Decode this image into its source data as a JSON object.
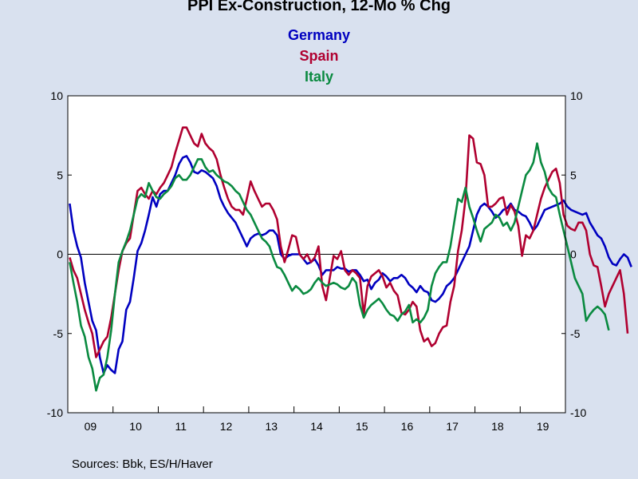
{
  "chart_data": {
    "type": "line",
    "title": "PPI Ex-Construction, 12-Mo % Chg",
    "source": "Sources:  Bbk, ES/H/Haver",
    "ylim": [
      -10,
      10
    ],
    "y_ticks": [
      "10",
      "5",
      "0",
      "-5",
      "-10"
    ],
    "x_labels": [
      "09",
      "10",
      "11",
      "12",
      "13",
      "14",
      "15",
      "16",
      "17",
      "18",
      "19"
    ],
    "x_start": "2009-01",
    "x_end": "2019-12",
    "grid": false,
    "legend_placement": "top-center",
    "series": [
      {
        "name": "Germany",
        "color": "#0000c0",
        "values": [
          3.2,
          1.5,
          0.5,
          -0.2,
          -1.8,
          -3.0,
          -4.2,
          -4.8,
          -6.5,
          -7.5,
          -7.0,
          -7.3,
          -7.5,
          -6.0,
          -5.5,
          -3.5,
          -3.0,
          -1.5,
          0.2,
          0.7,
          1.5,
          2.5,
          3.6,
          3.0,
          3.8,
          4.0,
          4.0,
          4.5,
          5.0,
          5.7,
          6.1,
          6.2,
          5.8,
          5.2,
          5.1,
          5.3,
          5.2,
          5.0,
          4.8,
          4.3,
          3.5,
          3.0,
          2.6,
          2.3,
          2.0,
          1.5,
          1.0,
          0.5,
          1.0,
          1.2,
          1.3,
          1.2,
          1.3,
          1.5,
          1.5,
          1.2,
          0.0,
          -0.3,
          -0.1,
          0.0,
          0.0,
          0.0,
          -0.3,
          -0.6,
          -0.5,
          -0.3,
          -0.7,
          -1.3,
          -1.0,
          -1.0,
          -1.0,
          -0.8,
          -0.9,
          -0.9,
          -1.1,
          -1.0,
          -1.0,
          -1.3,
          -1.7,
          -1.6,
          -2.2,
          -1.8,
          -1.6,
          -1.2,
          -1.4,
          -1.7,
          -1.5,
          -1.5,
          -1.3,
          -1.5,
          -1.9,
          -2.1,
          -2.4,
          -2.0,
          -2.3,
          -2.4,
          -2.9,
          -3.0,
          -2.8,
          -2.5,
          -2.0,
          -1.8,
          -1.5,
          -1.0,
          -0.5,
          0.0,
          0.5,
          1.5,
          2.5,
          3.0,
          3.2,
          3.0,
          2.7,
          2.3,
          2.5,
          2.8,
          2.9,
          3.2,
          2.8,
          2.7,
          2.5,
          2.4,
          2.0,
          1.5,
          1.8,
          2.3,
          2.8,
          2.9,
          3.0,
          3.1,
          3.2,
          3.4,
          3.0,
          2.8,
          2.7,
          2.6,
          2.5,
          2.6,
          2.0,
          1.6,
          1.2,
          1.0,
          0.5,
          -0.2,
          -0.6,
          -0.7,
          -0.3,
          0.0,
          -0.2,
          -0.8
        ]
      },
      {
        "name": "Spain",
        "color": "#b00030",
        "values": [
          -0.2,
          -1.0,
          -1.5,
          -2.5,
          -3.5,
          -4.3,
          -5.0,
          -6.5,
          -6.0,
          -5.5,
          -5.2,
          -4.0,
          -2.5,
          -1.0,
          0.2,
          0.7,
          1.0,
          2.5,
          4.0,
          4.2,
          3.8,
          3.5,
          4.0,
          3.8,
          4.2,
          4.5,
          5.0,
          5.5,
          6.4,
          7.2,
          8.0,
          8.0,
          7.5,
          7.0,
          6.8,
          7.6,
          7.0,
          6.7,
          6.5,
          6.0,
          5.0,
          4.2,
          3.5,
          3.0,
          2.8,
          2.8,
          2.5,
          3.5,
          4.6,
          4.0,
          3.5,
          3.0,
          3.2,
          3.2,
          2.8,
          2.2,
          0.5,
          -0.5,
          0.3,
          1.2,
          1.1,
          0.0,
          -0.3,
          0.0,
          -0.5,
          -0.2,
          0.5,
          -2.0,
          -2.9,
          -1.5,
          -0.1,
          -0.3,
          0.2,
          -1.0,
          -1.3,
          -1.0,
          -1.2,
          -1.5,
          -3.8,
          -2.0,
          -1.4,
          -1.2,
          -1.0,
          -1.4,
          -2.1,
          -1.8,
          -2.3,
          -2.6,
          -3.7,
          -3.8,
          -3.5,
          -3.0,
          -3.3,
          -4.8,
          -5.5,
          -5.3,
          -5.8,
          -5.6,
          -5.0,
          -4.6,
          -4.5,
          -3.0,
          -2.0,
          0.2,
          1.5,
          3.5,
          7.5,
          7.3,
          5.8,
          5.7,
          5.0,
          3.0,
          3.0,
          3.2,
          3.5,
          3.6,
          2.5,
          3.1,
          2.7,
          1.8,
          -0.1,
          1.2,
          1.0,
          1.5,
          2.5,
          3.5,
          4.2,
          4.7,
          5.2,
          5.4,
          4.5,
          2.5,
          1.8,
          1.6,
          1.5,
          2.0,
          2.0,
          1.5,
          0.0,
          -0.7,
          -0.8,
          -2.0,
          -3.3,
          -2.5,
          -2.0,
          -1.5,
          -1.0,
          -2.5,
          -5.0
        ]
      },
      {
        "name": "Italy",
        "color": "#0a8a40",
        "values": [
          -0.5,
          -1.8,
          -3.0,
          -4.5,
          -5.2,
          -6.5,
          -7.2,
          -8.6,
          -7.8,
          -7.6,
          -6.5,
          -4.8,
          -2.5,
          -0.5,
          0.2,
          0.8,
          1.5,
          2.5,
          3.5,
          3.8,
          3.6,
          4.5,
          4.0,
          3.6,
          3.5,
          3.8,
          4.0,
          4.3,
          4.8,
          5.0,
          4.7,
          4.7,
          5.0,
          5.5,
          6.0,
          6.0,
          5.5,
          5.2,
          5.3,
          5.0,
          4.8,
          4.6,
          4.5,
          4.3,
          4.0,
          3.8,
          3.3,
          2.8,
          2.5,
          2.0,
          1.5,
          1.0,
          0.8,
          0.5,
          -0.2,
          -0.8,
          -0.9,
          -1.3,
          -1.8,
          -2.3,
          -2.0,
          -2.2,
          -2.5,
          -2.4,
          -2.2,
          -1.8,
          -1.5,
          -1.8,
          -2.0,
          -1.9,
          -1.8,
          -1.9,
          -2.1,
          -2.2,
          -2.0,
          -1.5,
          -1.8,
          -3.2,
          -4.0,
          -3.5,
          -3.2,
          -3.0,
          -2.8,
          -3.1,
          -3.5,
          -3.8,
          -3.9,
          -4.2,
          -3.8,
          -3.6,
          -3.2,
          -4.3,
          -4.1,
          -4.3,
          -4.0,
          -3.5,
          -2.0,
          -1.2,
          -0.8,
          -0.5,
          -0.5,
          0.5,
          2.0,
          3.5,
          3.3,
          4.2,
          3.0,
          2.3,
          1.5,
          0.8,
          1.6,
          1.8,
          2.0,
          2.5,
          2.3,
          1.8,
          2.0,
          1.5,
          2.0,
          3.0,
          4.0,
          5.0,
          5.3,
          5.8,
          7.0,
          5.8,
          5.2,
          4.2,
          3.8,
          3.6,
          2.5,
          1.5,
          0.5,
          -0.5,
          -1.5,
          -2.0,
          -2.5,
          -4.2,
          -3.8,
          -3.5,
          -3.3,
          -3.5,
          -3.8,
          -4.8
        ]
      }
    ]
  }
}
